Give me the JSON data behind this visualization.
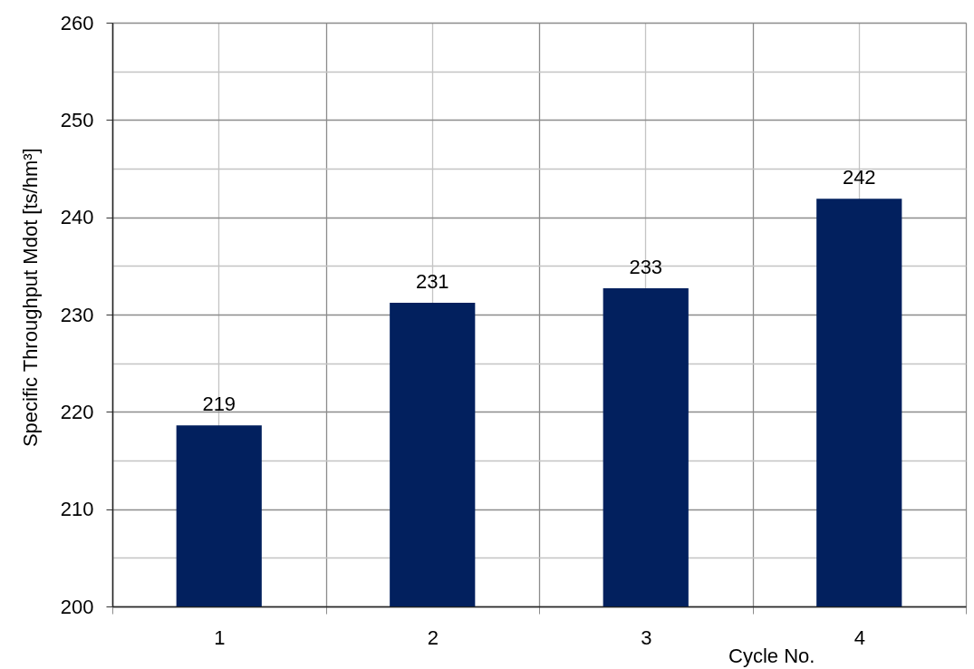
{
  "chart_data": {
    "type": "bar",
    "xlabel": "Cycle No.",
    "ylabel": "Specific Throughput Mdot [ts/hm³]",
    "categories": [
      "1",
      "2",
      "3",
      "4"
    ],
    "values": [
      218.6,
      231.2,
      232.7,
      241.9
    ],
    "value_labels": [
      "219",
      "231",
      "233",
      "242"
    ],
    "color": "#02205e",
    "ylim": [
      200,
      260
    ],
    "yticks": [
      200,
      {
        "value": 205,
        "label": null
      },
      210,
      {
        "value": 215,
        "label": null
      },
      220,
      {
        "value": 225,
        "label": null
      },
      230,
      {
        "value": 235,
        "label": null
      },
      240,
      {
        "value": 245,
        "label": null
      },
      250,
      {
        "value": 255,
        "label": null
      },
      260
    ],
    "grid": true
  }
}
